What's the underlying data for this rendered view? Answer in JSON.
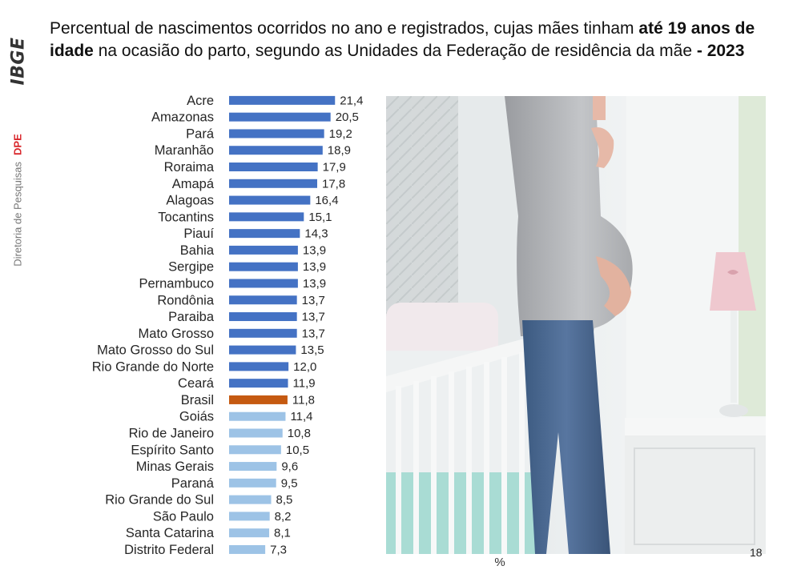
{
  "sidebar": {
    "logo": "IBGE",
    "directorate": "Diretoria de Pesquisas",
    "dept": "DPE"
  },
  "title": {
    "part1": "Percentual de nascimentos ocorridos no ano e registrados, cujas mães tinham ",
    "bold1": "até 19 anos de idade",
    "part2": " na ocasião do parto, segundo as Unidades da Federação de residência da mãe ",
    "bold2": "- 2023"
  },
  "page_number": "18",
  "colors": {
    "above": "#4472c4",
    "brasil": "#c55a11",
    "below": "#9dc3e6"
  },
  "photo_icon": "pregnant-woman-by-crib-photo",
  "chart_data": {
    "type": "bar",
    "orientation": "horizontal",
    "title": "",
    "xlabel": "%",
    "ylabel": "",
    "xlim": [
      0,
      25
    ],
    "grid": false,
    "categories": [
      "Acre",
      "Amazonas",
      "Pará",
      "Maranhão",
      "Roraima",
      "Amapá",
      "Alagoas",
      "Tocantins",
      "Piauí",
      "Bahia",
      "Sergipe",
      "Pernambuco",
      "Rondônia",
      "Paraiba",
      "Mato Grosso",
      "Mato Grosso do Sul",
      "Rio Grande do Norte",
      "Ceará",
      "Brasil",
      "Goiás",
      "Rio de Janeiro",
      "Espírito Santo",
      "Minas Gerais",
      "Paraná",
      "Rio Grande do Sul",
      "São Paulo",
      "Santa Catarina",
      "Distrito Federal"
    ],
    "values": [
      21.4,
      20.5,
      19.2,
      18.9,
      17.9,
      17.8,
      16.4,
      15.1,
      14.3,
      13.9,
      13.9,
      13.9,
      13.7,
      13.7,
      13.7,
      13.5,
      12.0,
      11.9,
      11.8,
      11.4,
      10.8,
      10.5,
      9.6,
      9.5,
      8.5,
      8.2,
      8.1,
      7.3
    ],
    "labels": [
      "21,4",
      "20,5",
      "19,2",
      "18,9",
      "17,9",
      "17,8",
      "16,4",
      "15,1",
      "14,3",
      "13,9",
      "13,9",
      "13,9",
      "13,7",
      "13,7",
      "13,7",
      "13,5",
      "12,0",
      "11,9",
      "11,8",
      "11,4",
      "10,8",
      "10,5",
      "9,6",
      "9,5",
      "8,5",
      "8,2",
      "8,1",
      "7,3"
    ]
  }
}
